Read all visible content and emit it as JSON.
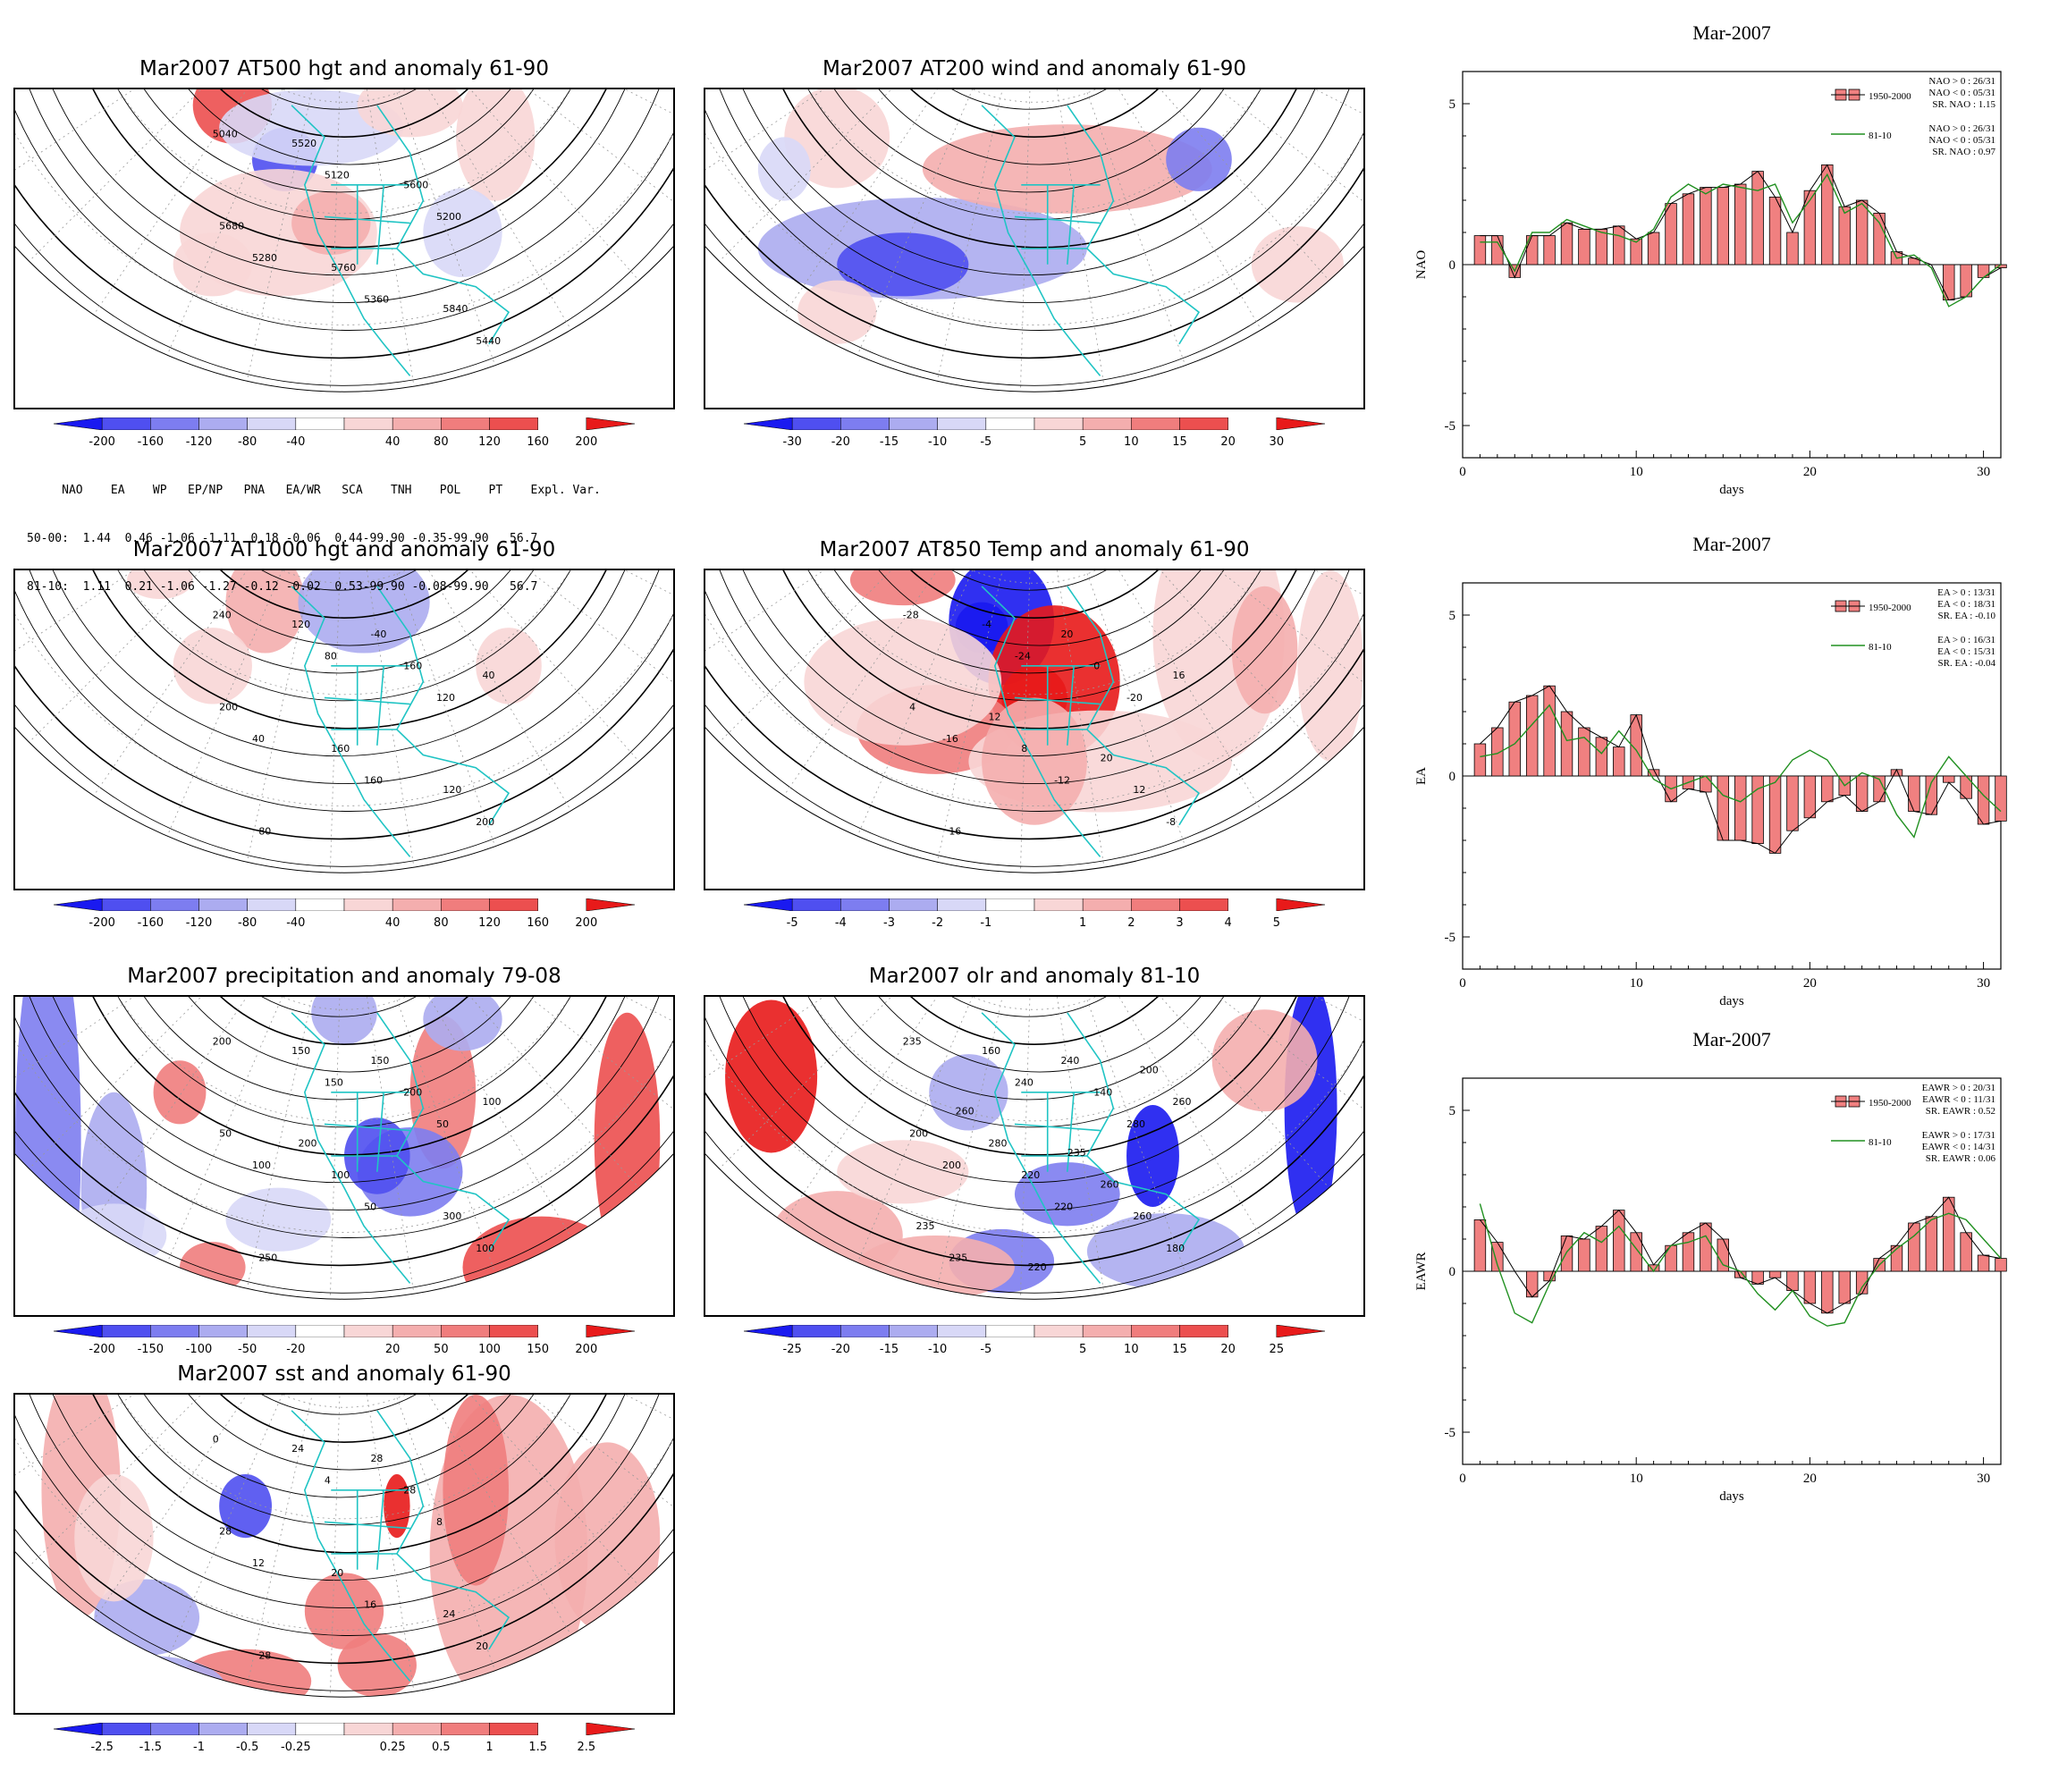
{
  "maps": [
    {
      "id": "z500",
      "title": "Mar2007 AT500 hgt and anomaly 61-90",
      "cbar": [
        "-200",
        "-160",
        "-120",
        "-80",
        "-40",
        "40",
        "80",
        "120",
        "160",
        "200"
      ],
      "contour_labels": [
        "5040",
        "5120",
        "5200",
        "5280",
        "5360",
        "5440",
        "5520",
        "5600",
        "5680",
        "5760",
        "5840"
      ]
    },
    {
      "id": "wind200",
      "title": "Mar2007 AT200 wind and anomaly 61-90",
      "cbar": [
        "-30",
        "-20",
        "-15",
        "-10",
        "-5",
        "5",
        "10",
        "15",
        "20",
        "30"
      ],
      "contour_labels": []
    },
    {
      "id": "z1000",
      "title": "Mar2007 AT1000 hgt and anomaly 61-90",
      "cbar": [
        "-200",
        "-160",
        "-120",
        "-80",
        "-40",
        "40",
        "80",
        "120",
        "160",
        "200"
      ],
      "contour_labels": [
        "240",
        "80",
        "120",
        "40",
        "160",
        "200",
        "120",
        "160",
        "200",
        "160",
        "120",
        "80",
        "-40",
        "40"
      ]
    },
    {
      "id": "t850",
      "title": "Mar2007 AT850 Temp and anomaly 61-90",
      "cbar": [
        "-5",
        "-4",
        "-3",
        "-2",
        "-1",
        "1",
        "2",
        "3",
        "4",
        "5"
      ],
      "contour_labels": [
        "-28",
        "-24",
        "-20",
        "-16",
        "-12",
        "-8",
        "-4",
        "0",
        "4",
        "8",
        "12",
        "16",
        "20",
        "16",
        "12",
        "20"
      ]
    },
    {
      "id": "prec",
      "title": "Mar2007 precipitation and anomaly 79-08",
      "cbar": [
        "-200",
        "-150",
        "-100",
        "-50",
        "-20",
        "20",
        "50",
        "100",
        "150",
        "200"
      ],
      "contour_labels": [
        "200",
        "150",
        "50",
        "100",
        "50",
        "100",
        "150",
        "200",
        "50",
        "100",
        "300",
        "250",
        "150",
        "100",
        "200"
      ]
    },
    {
      "id": "olr",
      "title": "Mar2007 olr and anomaly 81-10",
      "cbar": [
        "-25",
        "-20",
        "-15",
        "-10",
        "-5",
        "5",
        "10",
        "15",
        "20",
        "25"
      ],
      "contour_labels": [
        "235",
        "240",
        "280",
        "200",
        "220",
        "180",
        "160",
        "140",
        "200",
        "220",
        "260",
        "235",
        "240",
        "260",
        "280",
        "260",
        "235",
        "220",
        "200",
        "260",
        "235"
      ]
    },
    {
      "id": "sst",
      "title": "Mar2007 sst and anomaly 61-90",
      "cbar": [
        "-2.5",
        "-1.5",
        "-1",
        "-0.5",
        "-0.25",
        "0.25",
        "0.5",
        "1",
        "1.5",
        "2.5"
      ],
      "contour_labels": [
        "0",
        "4",
        "8",
        "12",
        "16",
        "20",
        "24",
        "28",
        "28",
        "20",
        "24",
        "28",
        "28"
      ]
    }
  ],
  "index_table": {
    "header": "     NAO    EA    WP   EP/NP   PNA   EA/WR   SCA    TNH    POL    PT    Expl. Var.",
    "row1": "50-00:  1.44  0.46 -1.06 -1.11  0.18 -0.06  0.44-99.90 -0.35-99.90   56.7",
    "row2": "81-10:  1.11  0.21 -1.06 -1.27 -0.12 -0.02  0.53-99.90 -0.08-99.90   56.7"
  },
  "colors": {
    "neg": [
      "#1a1af0",
      "#4f4ff0",
      "#7d7df0",
      "#acacf0",
      "#d8d8f7"
    ],
    "pos": [
      "#f8d6d6",
      "#f4aeae",
      "#f07d7d",
      "#ec4f4f",
      "#e81a1a"
    ],
    "coast": "#20c4c4",
    "bar": "#f08080",
    "green": "#209020"
  },
  "chart_data": [
    {
      "type": "bar",
      "title": "Mar-2007",
      "ylabel": "NAO",
      "xlabel": "days",
      "xlim": [
        0,
        31
      ],
      "ylim": [
        -6,
        6
      ],
      "xticks": [
        "0",
        "10",
        "20",
        "30"
      ],
      "yticks": [
        "5",
        "0",
        "-5"
      ],
      "x": [
        1,
        2,
        3,
        4,
        5,
        6,
        7,
        8,
        9,
        10,
        11,
        12,
        13,
        14,
        15,
        16,
        17,
        18,
        19,
        20,
        21,
        22,
        23,
        24,
        25,
        26,
        27,
        28,
        29,
        30,
        31
      ],
      "series": [
        {
          "name": "1950-2000",
          "values": [
            0.9,
            0.9,
            -0.4,
            0.9,
            0.9,
            1.3,
            1.1,
            1.1,
            1.2,
            0.8,
            1.0,
            1.9,
            2.2,
            2.4,
            2.4,
            2.5,
            2.9,
            2.1,
            1.0,
            2.3,
            3.1,
            1.8,
            2.0,
            1.6,
            0.4,
            0.2,
            0.0,
            -1.1,
            -1.0,
            -0.4,
            -0.1
          ]
        },
        {
          "name": "81-10",
          "values": [
            0.7,
            0.7,
            -0.2,
            1.0,
            1.0,
            1.4,
            1.2,
            1.0,
            0.9,
            0.7,
            1.1,
            2.1,
            2.5,
            2.2,
            2.5,
            2.4,
            2.3,
            2.5,
            1.3,
            2.0,
            2.8,
            1.6,
            1.9,
            1.3,
            0.2,
            0.3,
            -0.1,
            -1.3,
            -1.0,
            -0.4,
            0.0
          ]
        }
      ],
      "legend": [
        "NAO > 0 : 26/31",
        "NAO < 0 : 05/31",
        "SR. NAO :  1.15",
        "NAO > 0 : 26/31",
        "NAO < 0 : 05/31",
        "SR. NAO :  0.97"
      ]
    },
    {
      "type": "bar",
      "title": "Mar-2007",
      "ylabel": "EA",
      "xlabel": "days",
      "xlim": [
        0,
        31
      ],
      "ylim": [
        -6,
        6
      ],
      "xticks": [
        "0",
        "10",
        "20",
        "30"
      ],
      "yticks": [
        "5",
        "0",
        "-5"
      ],
      "x": [
        1,
        2,
        3,
        4,
        5,
        6,
        7,
        8,
        9,
        10,
        11,
        12,
        13,
        14,
        15,
        16,
        17,
        18,
        19,
        20,
        21,
        22,
        23,
        24,
        25,
        26,
        27,
        28,
        29,
        30,
        31
      ],
      "series": [
        {
          "name": "1950-2000",
          "values": [
            1.0,
            1.5,
            2.3,
            2.5,
            2.8,
            2.0,
            1.5,
            1.2,
            0.9,
            1.9,
            0.2,
            -0.8,
            -0.4,
            -0.5,
            -2.0,
            -2.0,
            -2.1,
            -2.4,
            -1.7,
            -1.3,
            -0.8,
            -0.6,
            -1.1,
            -0.8,
            0.2,
            -1.1,
            -1.2,
            -0.2,
            -0.7,
            -1.5,
            -1.4
          ]
        },
        {
          "name": "81-10",
          "values": [
            0.6,
            0.7,
            1.0,
            1.6,
            2.2,
            1.1,
            1.2,
            0.7,
            1.4,
            0.8,
            -0.1,
            -0.4,
            -0.2,
            0.0,
            -0.6,
            -0.8,
            -0.4,
            -0.2,
            0.5,
            0.8,
            0.5,
            -0.3,
            0.1,
            -0.1,
            -1.2,
            -1.9,
            -0.2,
            0.6,
            0.0,
            -0.6,
            -1.1
          ]
        }
      ],
      "legend": [
        "EA > 0 : 13/31",
        "EA < 0 : 18/31",
        "SR. EA : -0.10",
        "EA > 0 : 16/31",
        "EA < 0 : 15/31",
        "SR. EA : -0.04"
      ]
    },
    {
      "type": "bar",
      "title": "Mar-2007",
      "ylabel": "EAWR",
      "xlabel": "days",
      "xlim": [
        0,
        31
      ],
      "ylim": [
        -6,
        6
      ],
      "xticks": [
        "0",
        "10",
        "20",
        "30"
      ],
      "yticks": [
        "5",
        "0",
        "-5"
      ],
      "x": [
        1,
        2,
        3,
        4,
        5,
        6,
        7,
        8,
        9,
        10,
        11,
        12,
        13,
        14,
        15,
        16,
        17,
        18,
        19,
        20,
        21,
        22,
        23,
        24,
        25,
        26,
        27,
        28,
        29,
        30,
        31
      ],
      "series": [
        {
          "name": "1950-2000",
          "values": [
            1.6,
            0.9,
            0.0,
            -0.8,
            -0.3,
            1.1,
            1.0,
            1.4,
            1.9,
            1.2,
            0.2,
            0.8,
            1.2,
            1.5,
            1.0,
            -0.2,
            -0.4,
            -0.2,
            -0.6,
            -1.0,
            -1.3,
            -1.0,
            -0.7,
            0.4,
            0.8,
            1.5,
            1.7,
            2.3,
            1.2,
            0.5,
            0.4
          ]
        },
        {
          "name": "81-10",
          "values": [
            2.1,
            0.2,
            -1.3,
            -1.6,
            -0.4,
            0.6,
            1.2,
            0.9,
            1.4,
            0.7,
            0.0,
            0.8,
            0.9,
            1.1,
            0.2,
            0.0,
            -0.7,
            -1.2,
            -0.6,
            -1.4,
            -1.7,
            -1.6,
            -0.5,
            0.2,
            0.7,
            1.1,
            1.6,
            1.8,
            1.6,
            1.0,
            0.4
          ]
        }
      ],
      "legend": [
        "EAWR > 0 : 20/31",
        "EAWR < 0 : 11/31",
        "SR. EAWR :  0.52",
        "EAWR > 0 : 17/31",
        "EAWR < 0 : 14/31",
        "SR. EAWR :  0.06"
      ]
    }
  ]
}
